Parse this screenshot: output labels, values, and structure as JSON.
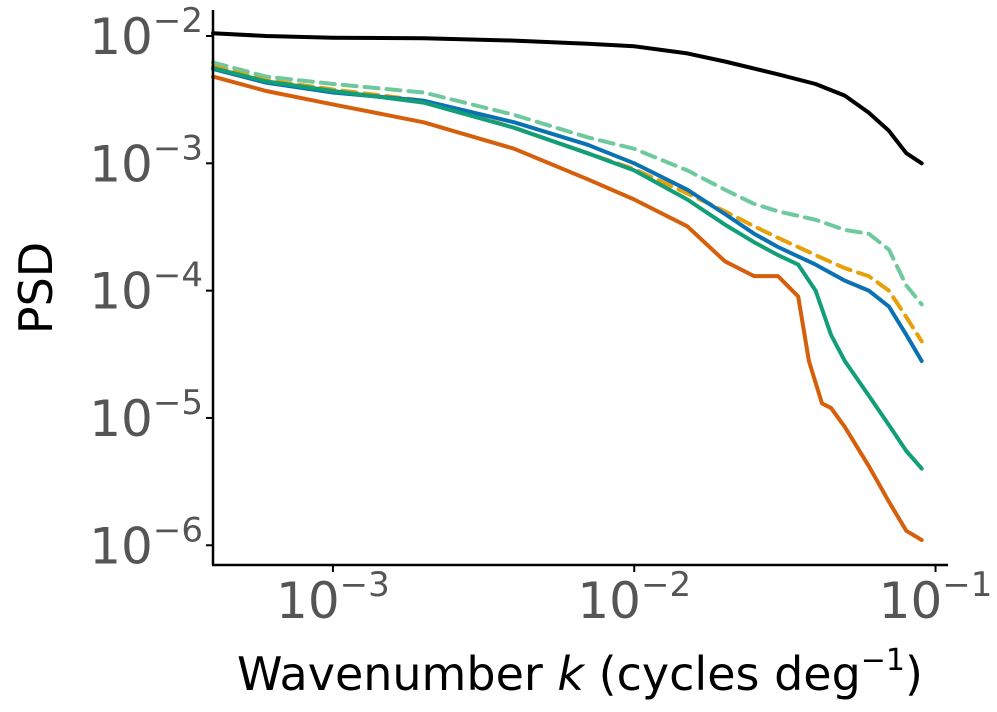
{
  "chart_data": {
    "type": "line",
    "title": "",
    "xlabel": {
      "prefix": "Wavenumber ",
      "variable": "k",
      "suffix": " (cycles deg",
      "exponent": "−1",
      "close": ")"
    },
    "ylabel": "PSD",
    "xscale": "log",
    "yscale": "log",
    "xlim": [
      0.0004,
      0.11
    ],
    "ylim": [
      7e-07,
      0.016
    ],
    "grid": false,
    "x_ticks": [
      {
        "value": 0.001,
        "base": "10",
        "exponent": "−3"
      },
      {
        "value": 0.01,
        "base": "10",
        "exponent": "−2"
      },
      {
        "value": 0.1,
        "base": "10",
        "exponent": "−1"
      }
    ],
    "y_ticks": [
      {
        "value": 0.01,
        "base": "10",
        "exponent": "−2"
      },
      {
        "value": 0.001,
        "base": "10",
        "exponent": "−3"
      },
      {
        "value": 0.0001,
        "base": "10",
        "exponent": "−4"
      },
      {
        "value": 1e-05,
        "base": "10",
        "exponent": "−5"
      },
      {
        "value": 1e-06,
        "base": "10",
        "exponent": "−6"
      }
    ],
    "series": [
      {
        "name": "black",
        "color": "#000000",
        "dashed": false,
        "x": [
          0.0004,
          0.0006,
          0.001,
          0.002,
          0.004,
          0.007,
          0.01,
          0.015,
          0.02,
          0.03,
          0.04,
          0.05,
          0.06,
          0.07,
          0.08,
          0.09
        ],
        "y": [
          0.0105,
          0.01,
          0.0097,
          0.0096,
          0.0092,
          0.0087,
          0.0083,
          0.0073,
          0.0063,
          0.005,
          0.0042,
          0.0034,
          0.0025,
          0.0018,
          0.0012,
          0.001
        ]
      },
      {
        "name": "dashed-light-green",
        "color": "#6fc99e",
        "dashed": true,
        "x": [
          0.0004,
          0.0006,
          0.001,
          0.002,
          0.004,
          0.007,
          0.01,
          0.015,
          0.02,
          0.025,
          0.03,
          0.04,
          0.05,
          0.06,
          0.07,
          0.08,
          0.09
        ],
        "y": [
          0.0062,
          0.0048,
          0.0042,
          0.0036,
          0.0024,
          0.0016,
          0.0013,
          0.00088,
          0.00062,
          0.00048,
          0.00042,
          0.00036,
          0.0003,
          0.00028,
          0.00021,
          0.00011,
          7.8e-05
        ]
      },
      {
        "name": "dashed-orange",
        "color": "#e6a00a",
        "dashed": true,
        "x": [
          0.0004,
          0.0006,
          0.001,
          0.002,
          0.004,
          0.007,
          0.01,
          0.015,
          0.02,
          0.025,
          0.03,
          0.04,
          0.05,
          0.06,
          0.07,
          0.08,
          0.09
        ],
        "y": [
          0.0058,
          0.0045,
          0.0038,
          0.0031,
          0.0019,
          0.0012,
          0.0009,
          0.00058,
          0.00042,
          0.00032,
          0.00026,
          0.00019,
          0.00015,
          0.00013,
          0.0001,
          6.2e-05,
          4e-05
        ]
      },
      {
        "name": "blue",
        "color": "#0a72b2",
        "dashed": false,
        "x": [
          0.0004,
          0.0006,
          0.001,
          0.002,
          0.004,
          0.007,
          0.01,
          0.015,
          0.02,
          0.025,
          0.03,
          0.04,
          0.05,
          0.06,
          0.07,
          0.08,
          0.09
        ],
        "y": [
          0.0055,
          0.0043,
          0.0036,
          0.0031,
          0.0021,
          0.0014,
          0.001,
          0.00062,
          0.0004,
          0.00028,
          0.00022,
          0.00016,
          0.00012,
          0.0001,
          7.5e-05,
          4.5e-05,
          2.8e-05
        ]
      },
      {
        "name": "green",
        "color": "#119e78",
        "dashed": false,
        "x": [
          0.0004,
          0.0006,
          0.001,
          0.002,
          0.004,
          0.007,
          0.01,
          0.015,
          0.02,
          0.025,
          0.03,
          0.035,
          0.04,
          0.045,
          0.05,
          0.06,
          0.07,
          0.08,
          0.09
        ],
        "y": [
          0.0056,
          0.0044,
          0.0037,
          0.003,
          0.0019,
          0.0012,
          0.00088,
          0.00052,
          0.00033,
          0.00024,
          0.00019,
          0.00016,
          0.0001,
          4.5e-05,
          2.8e-05,
          1.5e-05,
          8.8e-06,
          5.5e-06,
          4e-06
        ]
      },
      {
        "name": "red-orange",
        "color": "#d55f0a",
        "dashed": false,
        "x": [
          0.0004,
          0.0006,
          0.001,
          0.002,
          0.004,
          0.007,
          0.01,
          0.015,
          0.02,
          0.025,
          0.03,
          0.035,
          0.038,
          0.042,
          0.045,
          0.05,
          0.06,
          0.07,
          0.08,
          0.09
        ],
        "y": [
          0.0048,
          0.0037,
          0.0029,
          0.0021,
          0.0013,
          0.00075,
          0.00052,
          0.00032,
          0.00017,
          0.00013,
          0.00013,
          9e-05,
          2.8e-05,
          1.3e-05,
          1.2e-05,
          8.5e-06,
          4.2e-06,
          2.2e-06,
          1.3e-06,
          1.1e-06
        ]
      }
    ]
  }
}
